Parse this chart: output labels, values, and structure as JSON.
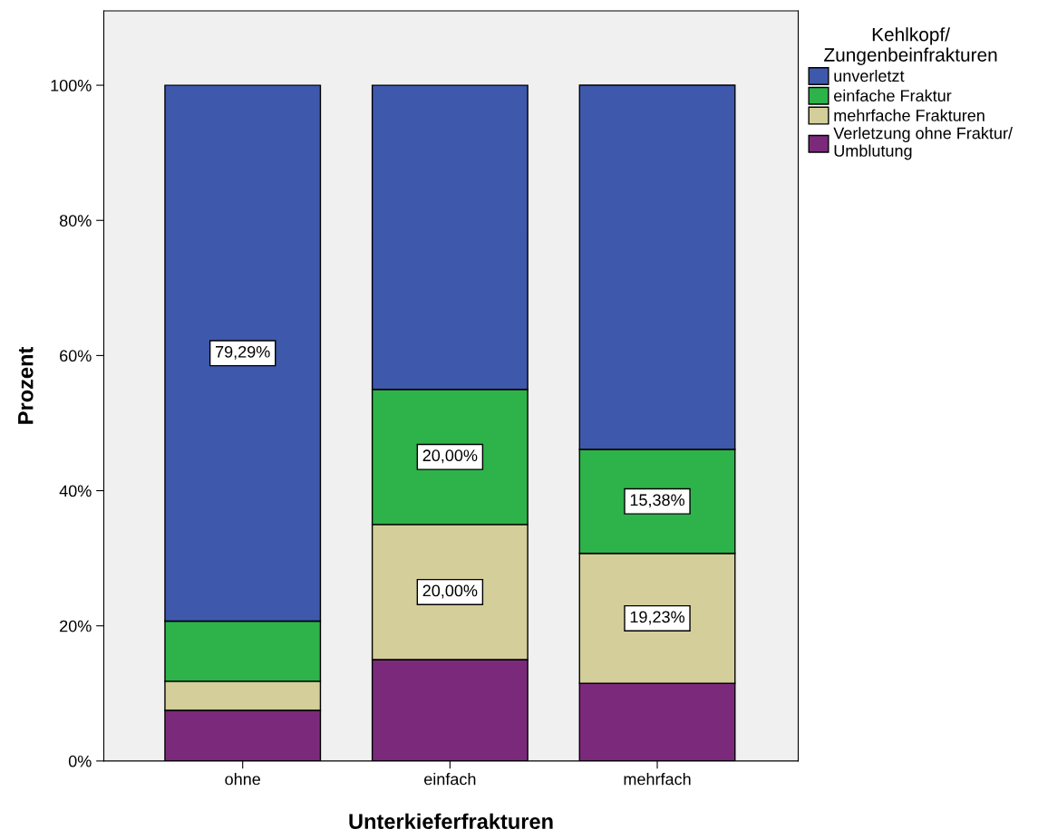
{
  "chart_data": {
    "type": "bar",
    "stacked": true,
    "xlabel": "Unterkieferfrakturen",
    "ylabel": "Prozent",
    "legend_title": "Kehlkopf/\nZungenbeinfrakturen",
    "legend": "top right",
    "categories": [
      "ohne",
      "einfach",
      "mehrfach"
    ],
    "ylim": [
      0,
      111
    ],
    "yticks": [
      {
        "value": 0,
        "label": "0%"
      },
      {
        "value": 20,
        "label": "20%"
      },
      {
        "value": 40,
        "label": "40%"
      },
      {
        "value": 60,
        "label": "60%"
      },
      {
        "value": 80,
        "label": "80%"
      },
      {
        "value": 100,
        "label": "100%"
      }
    ],
    "grid": false,
    "series": [
      {
        "name": "Verletzung ohne Fraktur/\nUmblutung",
        "color": "#7b2a7b",
        "values": [
          7.5,
          15.0,
          11.5
        ],
        "value_labels": [
          null,
          null,
          null
        ]
      },
      {
        "name": "mehrfache Frakturen",
        "color": "#d4ce9a",
        "values": [
          4.3,
          20.0,
          19.23
        ],
        "value_labels": [
          null,
          "20,00%",
          "19,23%"
        ]
      },
      {
        "name": "einfache Fraktur",
        "color": "#2db34a",
        "values": [
          8.9,
          20.0,
          15.38
        ],
        "value_labels": [
          null,
          "20,00%",
          "15,38%"
        ]
      },
      {
        "name": "unverletzt",
        "color": "#3e58ac",
        "values": [
          79.29,
          45.0,
          53.9
        ],
        "value_labels": [
          "79,29%",
          null,
          null
        ]
      }
    ]
  }
}
